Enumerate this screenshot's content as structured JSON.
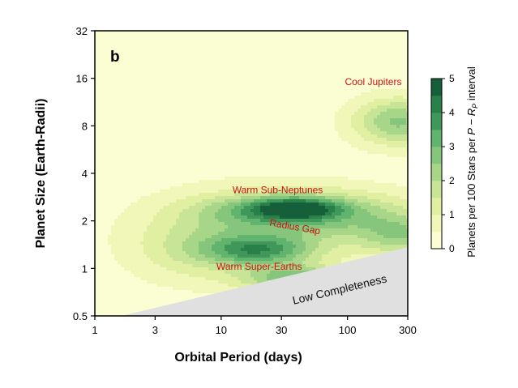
{
  "chart_data": {
    "type": "heatmap",
    "panel_label": "b",
    "xlabel": "Orbital Period (days)",
    "ylabel": "Planet Size (Earth-Radii)",
    "xscale": "log",
    "yscale": "log",
    "xlim": [
      1,
      300
    ],
    "ylim": [
      0.5,
      32
    ],
    "xticks": [
      1,
      3,
      10,
      30,
      100,
      300
    ],
    "xtick_labels": [
      "1",
      "3",
      "10",
      "30",
      "100",
      "300"
    ],
    "yticks": [
      0.5,
      1,
      2,
      4,
      8,
      16,
      32
    ],
    "ytick_labels": [
      "0.5",
      "1",
      "2",
      "4",
      "8",
      "16",
      "32"
    ],
    "colorbar": {
      "label": "Planets per 100 Stars per P − R_P interval",
      "label_parts": [
        "Planets per 100 Stars per ",
        "P",
        " − ",
        "R",
        "P",
        " interval"
      ],
      "range": [
        0,
        5
      ],
      "levels": [
        0,
        0.5,
        1,
        1.5,
        2,
        2.5,
        3,
        3.5,
        4,
        4.5,
        5
      ],
      "ticks": [
        0,
        1,
        2,
        3,
        4,
        5
      ],
      "tick_labels": [
        "0",
        "1",
        "2",
        "3",
        "4",
        "5"
      ],
      "colors": [
        "#fbfdd2",
        "#f1f7b8",
        "#e1efa3",
        "#c8e496",
        "#a7d689",
        "#85c67c",
        "#61b46d",
        "#3f985a",
        "#298049",
        "#15603a"
      ]
    },
    "density_components": [
      {
        "period": 40,
        "radius": 2.4,
        "amplitude": 2.3,
        "sigma_logP": 0.22,
        "sigma_log2R": 0.14
      },
      {
        "period": 25,
        "radius": 2.35,
        "amplitude": 1.6,
        "sigma_logP": 0.4,
        "sigma_log2R": 0.22
      },
      {
        "period": 80,
        "radius": 2.2,
        "amplitude": 1.6,
        "sigma_logP": 0.5,
        "sigma_log2R": 0.35
      },
      {
        "period": 20,
        "radius": 1.3,
        "amplitude": 2.6,
        "sigma_logP": 0.3,
        "sigma_log2R": 0.22
      },
      {
        "period": 40,
        "radius": 0.85,
        "amplitude": 2.6,
        "sigma_logP": 0.3,
        "sigma_log2R": 0.2
      },
      {
        "period": 250,
        "radius": 8.5,
        "amplitude": 2.4,
        "sigma_logP": 0.25,
        "sigma_log2R": 0.35
      },
      {
        "period": 20,
        "radius": 1.8,
        "amplitude": 1.3,
        "sigma_logP": 0.6,
        "sigma_log2R": 0.6
      },
      {
        "period": 6,
        "radius": 1.3,
        "amplitude": 0.9,
        "sigma_logP": 0.35,
        "sigma_log2R": 0.5
      },
      {
        "period": 280,
        "radius": 1.6,
        "amplitude": 1.8,
        "sigma_logP": 0.25,
        "sigma_log2R": 0.3
      }
    ],
    "low_completeness_region": {
      "label": "Low Completeness",
      "boundary": [
        [
          1.63,
          0.5
        ],
        [
          300,
          1.36
        ]
      ],
      "color": "#e0e0e0"
    },
    "annotations": [
      {
        "text": "Cool Jupiters",
        "period": 160,
        "radius": 14.5
      },
      {
        "text": "Warm Sub-Neptunes",
        "period": 28,
        "radius": 3.0
      },
      {
        "text": "Radius Gap",
        "period": 38,
        "radius": 1.75,
        "rotation": 10
      },
      {
        "text": "Warm Super-Earths",
        "period": 20,
        "radius": 0.98
      }
    ],
    "annotation_color": "#cc1111"
  }
}
